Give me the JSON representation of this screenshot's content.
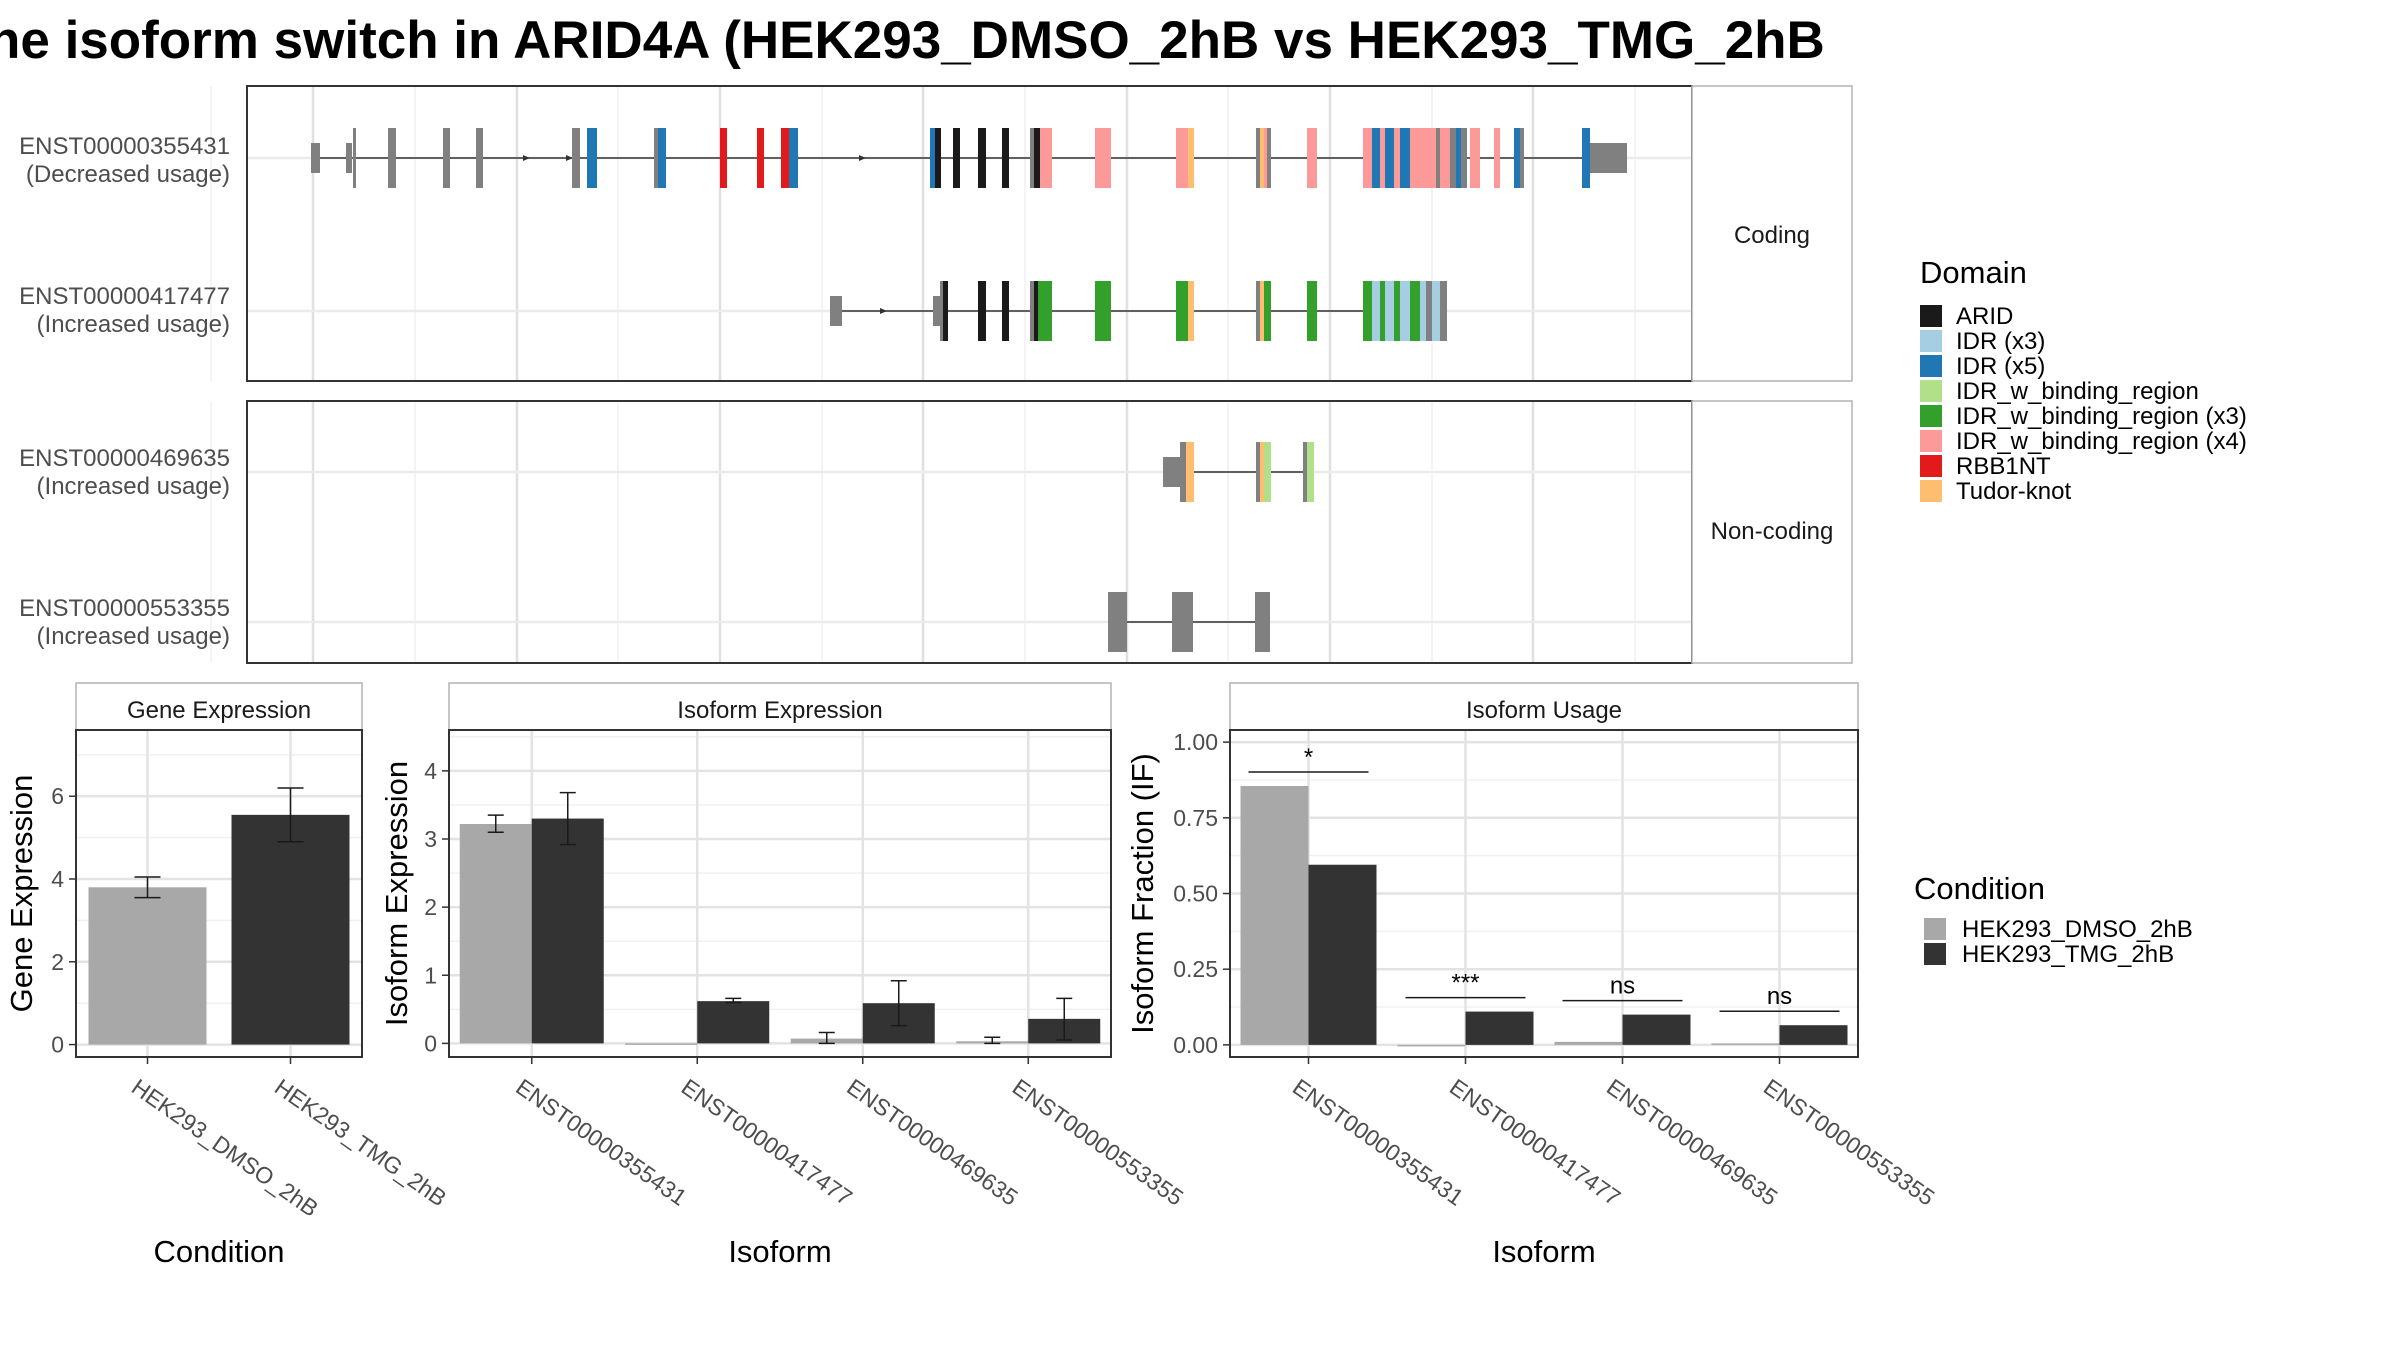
{
  "chart_data": [
    {
      "type": "gene-structure",
      "title": "he isoform switch in ARID4A (HEK293_DMSO_2hB vs HEK293_TMG_2hB",
      "facets": [
        "Coding",
        "Non-coding"
      ],
      "isoforms": [
        {
          "id": "ENST00000355431",
          "usage": "(Decreased usage)",
          "facet": "Coding"
        },
        {
          "id": "ENST00000417477",
          "usage": "(Increased usage)",
          "facet": "Coding"
        },
        {
          "id": "ENST00000469635",
          "usage": "(Increased usage)",
          "facet": "Non-coding"
        },
        {
          "id": "ENST00000553355",
          "usage": "(Increased usage)",
          "facet": "Non-coding"
        }
      ],
      "legend": {
        "title": "Domain",
        "items": [
          {
            "label": "ARID",
            "color": "#1a1a1a"
          },
          {
            "label": "IDR (x3)",
            "color": "#a6cee3"
          },
          {
            "label": "IDR (x5)",
            "color": "#1f78b4"
          },
          {
            "label": "IDR_w_binding_region",
            "color": "#b2df8a"
          },
          {
            "label": "IDR_w_binding_region (x3)",
            "color": "#33a02c"
          },
          {
            "label": "IDR_w_binding_region (x4)",
            "color": "#fb9a99"
          },
          {
            "label": "RBB1NT",
            "color": "#e31a1c"
          },
          {
            "label": "Tudor-knot",
            "color": "#fdbf6f"
          }
        ]
      }
    },
    {
      "type": "bar",
      "title": "Gene Expression",
      "xlabel": "Condition",
      "ylabel": "Gene Expression",
      "ylim": [
        -0.3,
        7.6
      ],
      "yticks": [
        "0",
        "2",
        "4",
        "6"
      ],
      "categories": [
        "HEK293_DMSO_2hB",
        "HEK293_TMG_2hB"
      ],
      "values": [
        3.8,
        5.55
      ],
      "errors": [
        [
          3.55,
          4.05
        ],
        [
          4.9,
          6.2
        ]
      ],
      "colors": [
        "#a8a8a8",
        "#333333"
      ]
    },
    {
      "type": "bar",
      "title": "Isoform Expression",
      "xlabel": "Isoform",
      "ylabel": "Isoform Expression",
      "ylim": [
        -0.2,
        4.6
      ],
      "yticks": [
        "0",
        "1",
        "2",
        "3",
        "4"
      ],
      "categories": [
        "ENST00000355431",
        "ENST00000417477",
        "ENST00000469635",
        "ENST00000553355"
      ],
      "series": [
        {
          "name": "HEK293_DMSO_2hB",
          "values": [
            3.22,
            0.0,
            0.07,
            0.03
          ],
          "errors": [
            [
              3.1,
              3.35
            ],
            [
              0.0,
              0.0
            ],
            [
              0.0,
              0.16
            ],
            [
              0.0,
              0.09
            ]
          ]
        },
        {
          "name": "HEK293_TMG_2hB",
          "values": [
            3.3,
            0.62,
            0.59,
            0.36
          ],
          "errors": [
            [
              2.92,
              3.68
            ],
            [
              0.6,
              0.66
            ],
            [
              0.26,
              0.92
            ],
            [
              0.05,
              0.66
            ]
          ]
        }
      ]
    },
    {
      "type": "bar",
      "title": "Isoform Usage",
      "xlabel": "Isoform",
      "ylabel": "Isoform Fraction (IF)",
      "ylim": [
        -0.04,
        1.04
      ],
      "yticks": [
        "0.00",
        "0.25",
        "0.50",
        "0.75",
        "1.00"
      ],
      "categories": [
        "ENST00000355431",
        "ENST00000417477",
        "ENST00000469635",
        "ENST00000553355"
      ],
      "series": [
        {
          "name": "HEK293_DMSO_2hB",
          "values": [
            0.855,
            0.0,
            0.01,
            0.005
          ]
        },
        {
          "name": "HEK293_TMG_2hB",
          "values": [
            0.595,
            0.11,
            0.1,
            0.065
          ]
        }
      ],
      "significance": [
        "*",
        "***",
        "ns",
        "ns"
      ]
    }
  ],
  "condition_legend": {
    "title": "Condition",
    "items": [
      {
        "label": "HEK293_DMSO_2hB",
        "color": "#a8a8a8"
      },
      {
        "label": "HEK293_TMG_2hB",
        "color": "#333333"
      }
    ]
  }
}
